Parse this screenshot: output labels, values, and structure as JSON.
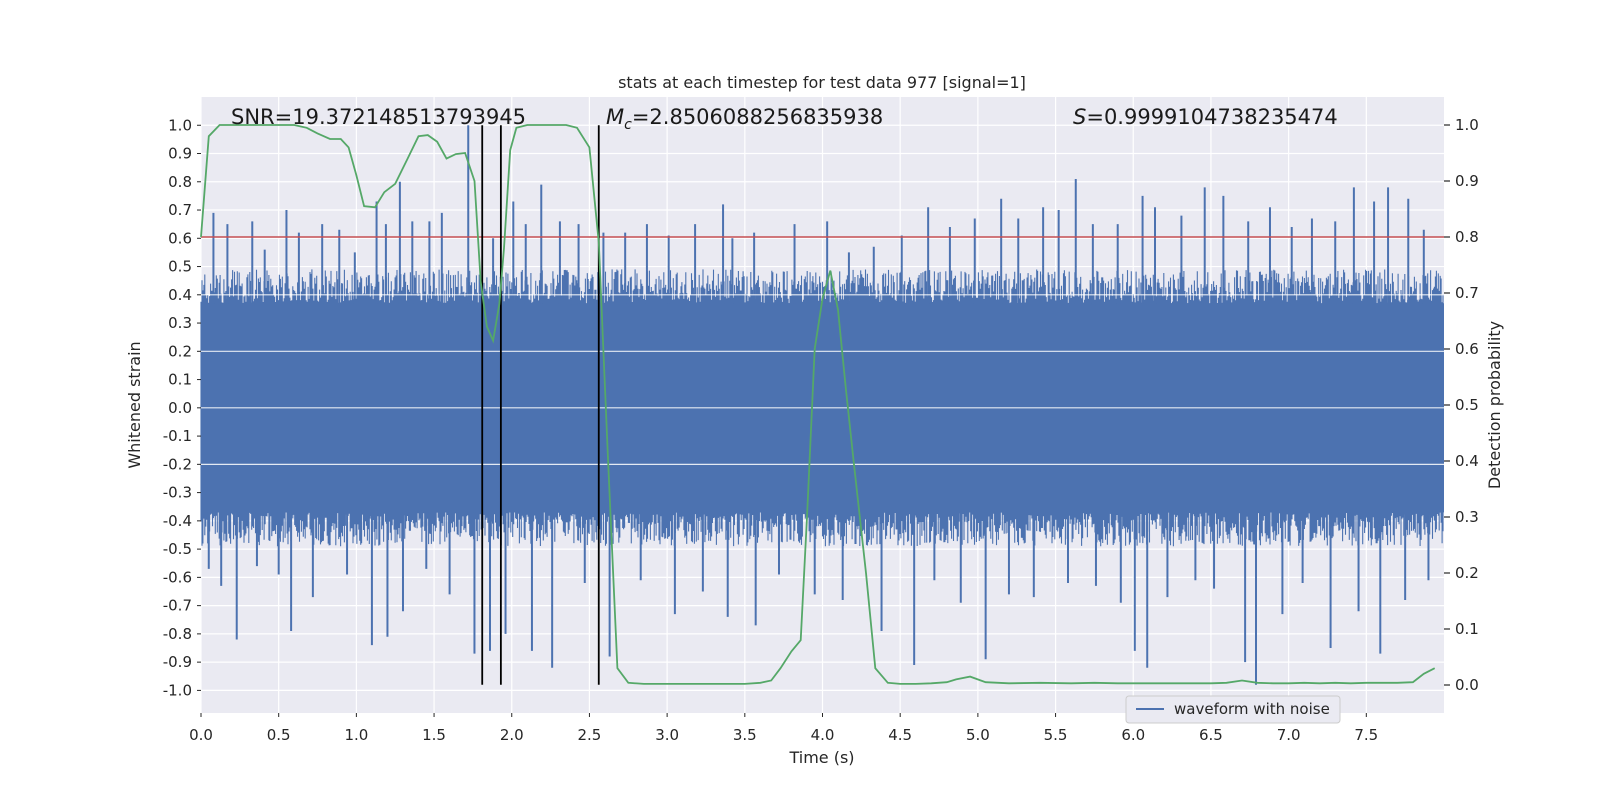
{
  "chart_data": {
    "type": "line",
    "title": "stats at each timestep for test data 977 [signal=1]",
    "xlabel": "Time (s)",
    "ylabel": "Whitened strain",
    "y2label": "Detection probability",
    "xlim": [
      0,
      8
    ],
    "ylim": [
      -1.08,
      1.1
    ],
    "y2lim": [
      -0.05,
      1.05
    ],
    "xticks": [
      "0.0",
      "0.5",
      "1.0",
      "1.5",
      "2.0",
      "2.5",
      "3.0",
      "3.5",
      "4.0",
      "4.5",
      "5.0",
      "5.5",
      "6.0",
      "6.5",
      "7.0",
      "7.5"
    ],
    "xtick_values": [
      0,
      0.5,
      1,
      1.5,
      2,
      2.5,
      3,
      3.5,
      4,
      4.5,
      5,
      5.5,
      6,
      6.5,
      7,
      7.5
    ],
    "yticks": [
      "1.0",
      "0.9",
      "0.8",
      "0.7",
      "0.6",
      "0.5",
      "0.4",
      "0.3",
      "0.2",
      "0.1",
      "0.0",
      "-0.1",
      "-0.2",
      "-0.3",
      "-0.4",
      "-0.5",
      "-0.6",
      "-0.7",
      "-0.8",
      "-0.9",
      "-1.0"
    ],
    "ytick_values": [
      1,
      0.9,
      0.8,
      0.7,
      0.6,
      0.5,
      0.4,
      0.3,
      0.2,
      0.1,
      0,
      -0.1,
      -0.2,
      -0.3,
      -0.4,
      -0.5,
      -0.6,
      -0.7,
      -0.8,
      -0.9,
      -1
    ],
    "y2ticks": [
      "1.0",
      "0.9",
      "0.8",
      "0.7",
      "0.6",
      "0.5",
      "0.4",
      "0.3",
      "0.2",
      "0.1",
      "0.0"
    ],
    "y2tick_values": [
      1,
      0.9,
      0.8,
      0.7,
      0.6,
      0.5,
      0.4,
      0.3,
      0.2,
      0.1,
      0
    ],
    "annotations": {
      "snr": "SNR=19.372148513793945",
      "mc_symbol": "M",
      "mc_sub": "c",
      "mc_value": "=2.8506088256835938",
      "s_symbol": "S",
      "s_value": "=0.9999104738235474"
    },
    "legend": {
      "label": "waveform with noise",
      "location": "lower-center-right"
    },
    "threshold": {
      "value": 0.8,
      "axis": "y2",
      "color": "#c44e52"
    },
    "vlines": [
      1.81,
      1.93,
      2.56
    ],
    "vline_range": [
      -0.98,
      1.0
    ],
    "waveform": {
      "name": "waveform with noise",
      "color": "#4c72b0",
      "t_start": 0,
      "t_end": 8,
      "core_amplitude": 0.37,
      "peaks_positive": [
        {
          "t": 0.08,
          "v": 0.69
        },
        {
          "t": 0.17,
          "v": 0.65
        },
        {
          "t": 0.33,
          "v": 0.66
        },
        {
          "t": 0.41,
          "v": 0.56
        },
        {
          "t": 0.55,
          "v": 0.7
        },
        {
          "t": 0.63,
          "v": 0.62
        },
        {
          "t": 0.78,
          "v": 0.65
        },
        {
          "t": 0.89,
          "v": 0.63
        },
        {
          "t": 0.99,
          "v": 0.55
        },
        {
          "t": 1.13,
          "v": 0.73
        },
        {
          "t": 1.19,
          "v": 0.65
        },
        {
          "t": 1.28,
          "v": 0.8
        },
        {
          "t": 1.36,
          "v": 0.66
        },
        {
          "t": 1.47,
          "v": 0.66
        },
        {
          "t": 1.55,
          "v": 0.69
        },
        {
          "t": 1.72,
          "v": 1.0
        },
        {
          "t": 1.88,
          "v": 0.6
        },
        {
          "t": 2.01,
          "v": 0.73
        },
        {
          "t": 2.09,
          "v": 0.65
        },
        {
          "t": 2.19,
          "v": 0.79
        },
        {
          "t": 2.31,
          "v": 0.66
        },
        {
          "t": 2.43,
          "v": 0.65
        },
        {
          "t": 2.59,
          "v": 0.62
        },
        {
          "t": 2.73,
          "v": 0.62
        },
        {
          "t": 2.87,
          "v": 0.65
        },
        {
          "t": 3.01,
          "v": 0.61
        },
        {
          "t": 3.18,
          "v": 0.65
        },
        {
          "t": 3.36,
          "v": 0.72
        },
        {
          "t": 3.42,
          "v": 0.6
        },
        {
          "t": 3.56,
          "v": 0.62
        },
        {
          "t": 3.82,
          "v": 0.65
        },
        {
          "t": 4.03,
          "v": 0.66
        },
        {
          "t": 4.17,
          "v": 0.55
        },
        {
          "t": 4.33,
          "v": 0.57
        },
        {
          "t": 4.51,
          "v": 0.61
        },
        {
          "t": 4.68,
          "v": 0.71
        },
        {
          "t": 4.82,
          "v": 0.64
        },
        {
          "t": 4.98,
          "v": 0.67
        },
        {
          "t": 5.15,
          "v": 0.74
        },
        {
          "t": 5.26,
          "v": 0.67
        },
        {
          "t": 5.42,
          "v": 0.71
        },
        {
          "t": 5.52,
          "v": 0.7
        },
        {
          "t": 5.63,
          "v": 0.81
        },
        {
          "t": 5.74,
          "v": 0.65
        },
        {
          "t": 5.9,
          "v": 0.65
        },
        {
          "t": 6.06,
          "v": 0.75
        },
        {
          "t": 6.14,
          "v": 0.71
        },
        {
          "t": 6.31,
          "v": 0.68
        },
        {
          "t": 6.46,
          "v": 0.78
        },
        {
          "t": 6.58,
          "v": 0.75
        },
        {
          "t": 6.74,
          "v": 0.66
        },
        {
          "t": 6.88,
          "v": 0.71
        },
        {
          "t": 7.02,
          "v": 0.64
        },
        {
          "t": 7.15,
          "v": 0.67
        },
        {
          "t": 7.3,
          "v": 0.66
        },
        {
          "t": 7.42,
          "v": 0.78
        },
        {
          "t": 7.55,
          "v": 0.73
        },
        {
          "t": 7.64,
          "v": 0.78
        },
        {
          "t": 7.77,
          "v": 0.74
        },
        {
          "t": 7.87,
          "v": 0.63
        }
      ],
      "peaks_negative": [
        {
          "t": 0.05,
          "v": -0.57
        },
        {
          "t": 0.13,
          "v": -0.63
        },
        {
          "t": 0.23,
          "v": -0.82
        },
        {
          "t": 0.36,
          "v": -0.56
        },
        {
          "t": 0.5,
          "v": -0.59
        },
        {
          "t": 0.58,
          "v": -0.79
        },
        {
          "t": 0.72,
          "v": -0.67
        },
        {
          "t": 0.94,
          "v": -0.59
        },
        {
          "t": 1.1,
          "v": -0.84
        },
        {
          "t": 1.2,
          "v": -0.81
        },
        {
          "t": 1.3,
          "v": -0.72
        },
        {
          "t": 1.45,
          "v": -0.57
        },
        {
          "t": 1.6,
          "v": -0.66
        },
        {
          "t": 1.76,
          "v": -0.87
        },
        {
          "t": 1.86,
          "v": -0.86
        },
        {
          "t": 1.96,
          "v": -0.8
        },
        {
          "t": 2.13,
          "v": -0.86
        },
        {
          "t": 2.26,
          "v": -0.92
        },
        {
          "t": 2.47,
          "v": -0.62
        },
        {
          "t": 2.63,
          "v": -0.88
        },
        {
          "t": 2.83,
          "v": -0.61
        },
        {
          "t": 3.05,
          "v": -0.73
        },
        {
          "t": 3.23,
          "v": -0.65
        },
        {
          "t": 3.39,
          "v": -0.74
        },
        {
          "t": 3.57,
          "v": -0.77
        },
        {
          "t": 3.72,
          "v": -0.59
        },
        {
          "t": 3.95,
          "v": -0.66
        },
        {
          "t": 4.13,
          "v": -0.68
        },
        {
          "t": 4.38,
          "v": -0.79
        },
        {
          "t": 4.59,
          "v": -0.91
        },
        {
          "t": 4.72,
          "v": -0.61
        },
        {
          "t": 4.89,
          "v": -0.69
        },
        {
          "t": 5.05,
          "v": -0.89
        },
        {
          "t": 5.2,
          "v": -0.66
        },
        {
          "t": 5.36,
          "v": -0.67
        },
        {
          "t": 5.58,
          "v": -0.62
        },
        {
          "t": 5.76,
          "v": -0.63
        },
        {
          "t": 5.92,
          "v": -0.69
        },
        {
          "t": 6.01,
          "v": -0.86
        },
        {
          "t": 6.09,
          "v": -0.92
        },
        {
          "t": 6.22,
          "v": -0.67
        },
        {
          "t": 6.4,
          "v": -0.61
        },
        {
          "t": 6.52,
          "v": -0.64
        },
        {
          "t": 6.72,
          "v": -0.9
        },
        {
          "t": 6.79,
          "v": -0.98
        },
        {
          "t": 6.96,
          "v": -0.73
        },
        {
          "t": 7.09,
          "v": -0.62
        },
        {
          "t": 7.27,
          "v": -0.85
        },
        {
          "t": 7.45,
          "v": -0.72
        },
        {
          "t": 7.59,
          "v": -0.87
        },
        {
          "t": 7.75,
          "v": -0.68
        },
        {
          "t": 7.9,
          "v": -0.61
        }
      ]
    },
    "detection_probability": {
      "name": "detection probability",
      "axis": "y2",
      "color": "#55a868",
      "t": [
        0,
        0.05,
        0.12,
        0.2,
        0.3,
        0.4,
        0.5,
        0.6,
        0.68,
        0.75,
        0.83,
        0.9,
        0.95,
        1.0,
        1.05,
        1.12,
        1.18,
        1.25,
        1.33,
        1.4,
        1.46,
        1.52,
        1.58,
        1.64,
        1.7,
        1.76,
        1.8,
        1.84,
        1.88,
        1.92,
        1.95,
        1.99,
        2.03,
        2.1,
        2.15,
        2.25,
        2.35,
        2.42,
        2.5,
        2.56,
        2.62,
        2.68,
        2.75,
        2.85,
        3.0,
        3.2,
        3.4,
        3.5,
        3.6,
        3.67,
        3.73,
        3.8,
        3.86,
        3.9,
        3.95,
        4.0,
        4.05,
        4.1,
        4.15,
        4.2,
        4.28,
        4.34,
        4.42,
        4.5,
        4.6,
        4.7,
        4.8,
        4.86,
        4.95,
        5.05,
        5.2,
        5.4,
        5.6,
        5.75,
        5.9,
        6.1,
        6.3,
        6.5,
        6.6,
        6.7,
        6.8,
        6.9,
        7.0,
        7.1,
        7.2,
        7.3,
        7.4,
        7.5,
        7.6,
        7.7,
        7.8,
        7.87,
        7.94
      ],
      "p": [
        0.8,
        0.98,
        1.0,
        1.0,
        1.0,
        1.0,
        1.0,
        1.0,
        0.995,
        0.985,
        0.975,
        0.975,
        0.96,
        0.91,
        0.855,
        0.853,
        0.88,
        0.895,
        0.94,
        0.98,
        0.982,
        0.97,
        0.94,
        0.948,
        0.95,
        0.9,
        0.72,
        0.64,
        0.615,
        0.68,
        0.78,
        0.955,
        0.995,
        1.0,
        1.0,
        1.0,
        1.0,
        0.995,
        0.96,
        0.79,
        0.4,
        0.03,
        0.004,
        0.002,
        0.002,
        0.002,
        0.002,
        0.002,
        0.004,
        0.008,
        0.03,
        0.06,
        0.08,
        0.3,
        0.6,
        0.69,
        0.74,
        0.67,
        0.53,
        0.4,
        0.2,
        0.03,
        0.004,
        0.002,
        0.002,
        0.003,
        0.005,
        0.01,
        0.015,
        0.005,
        0.003,
        0.004,
        0.003,
        0.004,
        0.003,
        0.003,
        0.003,
        0.003,
        0.004,
        0.008,
        0.004,
        0.003,
        0.003,
        0.004,
        0.003,
        0.004,
        0.003,
        0.004,
        0.004,
        0.004,
        0.005,
        0.02,
        0.03
      ]
    }
  }
}
